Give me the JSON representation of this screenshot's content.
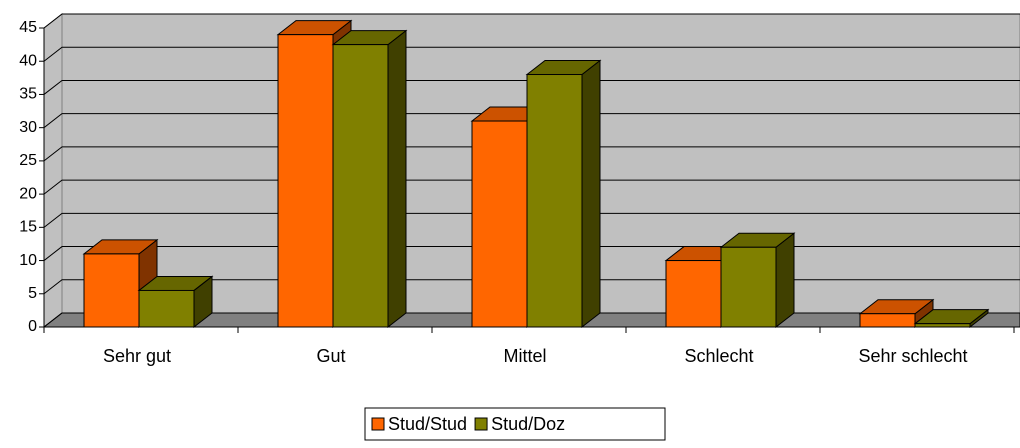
{
  "chart_data": {
    "type": "bar3d",
    "categories": [
      "Sehr gut",
      "Gut",
      "Mittel",
      "Schlecht",
      "Sehr schlecht"
    ],
    "series": [
      {
        "name": "Stud/Stud",
        "color": "#ff6600",
        "values": [
          11,
          44,
          31,
          10,
          2
        ]
      },
      {
        "name": "Stud/Doz",
        "color": "#808000",
        "values": [
          5.5,
          42.5,
          38,
          12,
          0.5
        ]
      }
    ],
    "ylim": [
      0,
      45
    ],
    "yticks": [
      0,
      5,
      10,
      15,
      20,
      25,
      30,
      35,
      40,
      45
    ],
    "grid": true,
    "legend": "bottom"
  }
}
